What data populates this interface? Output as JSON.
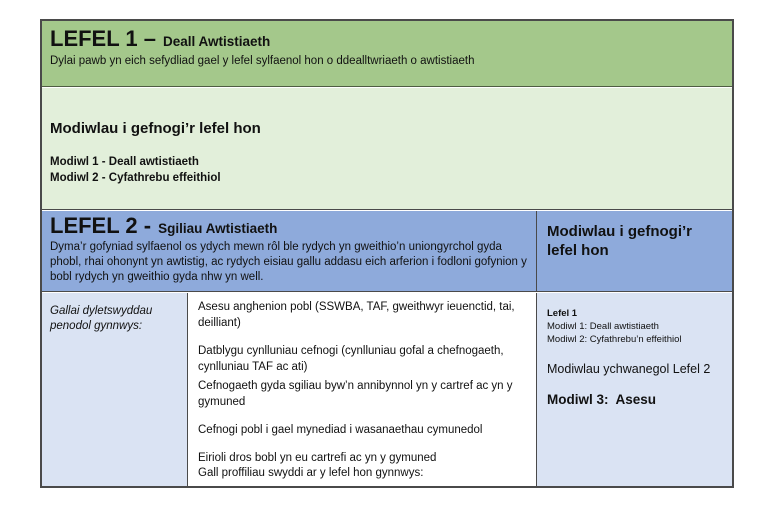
{
  "level1": {
    "title_main": "LEFEL 1 –",
    "title_sub": "Deall Awtistiaeth",
    "description": "Dylai pawb yn eich sefydliad gael y lefel sylfaenol hon o ddealltwriaeth o awtistiaeth"
  },
  "level1_modules": {
    "heading": "Modiwlau i gefnogi’r lefel hon",
    "items": [
      "Modiwl 1 - Deall awtistiaeth",
      "Modiwl 2 - Cyfathrebu effeithiol"
    ]
  },
  "level2": {
    "title_main": "LEFEL 2 -",
    "title_sub": "Sgiliau Awtistiaeth",
    "description": "Dyma’r gofyniad sylfaenol os ydych mewn rôl ble rydych yn gweithio’n uniongyrchol gyda phobl, rhai ohonynt yn awtistig, ac rydych eisiau gallu addasu eich arferion i fodloni gofynion y bobl rydych yn gweithio gyda nhw yn well.",
    "modules_heading": "Modiwlau i gefnogi’r lefel hon"
  },
  "duties": {
    "label": "Gallai dyletswyddau penodol gynnwys:",
    "items": [
      "Asesu anghenion pobl (SSWBA, TAF, gweithwyr ieuenctid, tai, deilliant)",
      "Datblygu cynlluniau cefnogi (cynlluniau gofal a chefnogaeth, cynlluniau TAF ac ati)",
      "Cefnogaeth gyda sgiliau byw’n annibynnol yn y cartref ac yn y gymuned",
      "Cefnogi pobl i gael mynediad i wasanaethau cymunedol",
      "Eirioli dros bobl yn eu cartrefi ac yn y gymuned"
    ],
    "footer": "Gall proffiliau swyddi ar y lefel hon gynnwys:"
  },
  "level2_modules_cell": {
    "lefel1_heading": "Lefel 1",
    "lefel1_items": [
      "Modiwl 1: Deall awtistiaeth",
      "Modiwl 2: Cyfathrebu’n effeithiol"
    ],
    "additional": "Modiwlau ychwanegol Lefel 2",
    "module3": "Modiwl 3:  Asesu"
  },
  "colors": {
    "level1_band": "#a4c88b",
    "level1_modules_band": "#e2efda",
    "level2_band": "#8eaadb",
    "level2_detail_band": "#dae3f3",
    "duties_cell": "#ffffff",
    "border": "#4a4a4a"
  }
}
